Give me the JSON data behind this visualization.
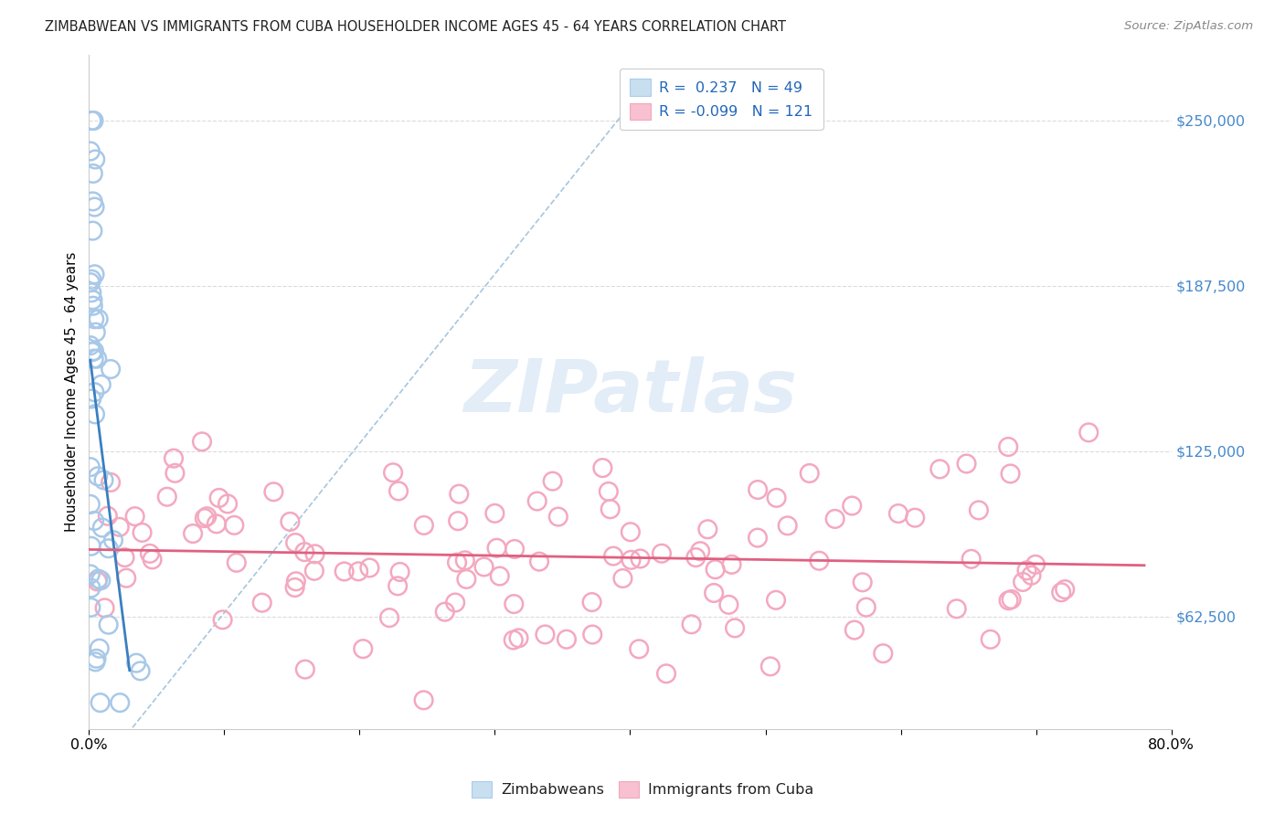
{
  "title": "ZIMBABWEAN VS IMMIGRANTS FROM CUBA HOUSEHOLDER INCOME AGES 45 - 64 YEARS CORRELATION CHART",
  "source": "Source: ZipAtlas.com",
  "ylabel": "Householder Income Ages 45 - 64 years",
  "xlim": [
    0.0,
    0.8
  ],
  "ylim": [
    20000,
    275000
  ],
  "ytick_vals": [
    62500,
    125000,
    187500,
    250000
  ],
  "ytick_labels": [
    "$62,500",
    "$125,000",
    "$187,500",
    "$250,000"
  ],
  "xtick_vals": [
    0.0,
    0.1,
    0.2,
    0.3,
    0.4,
    0.5,
    0.6,
    0.7,
    0.8
  ],
  "xtick_labels": [
    "0.0%",
    "",
    "",
    "",
    "",
    "",
    "",
    "",
    "80.0%"
  ],
  "watermark": "ZIPatlas",
  "blue_scatter_color": "#a8c8e8",
  "pink_scatter_color": "#f4a8c0",
  "blue_line_color": "#3a7fc0",
  "pink_line_color": "#e06080",
  "dashed_line_color": "#90b8d8",
  "grid_color": "#d8d8d8",
  "zim_n": 49,
  "cuba_n": 121,
  "zim_R": 0.237,
  "cuba_R": -0.099
}
